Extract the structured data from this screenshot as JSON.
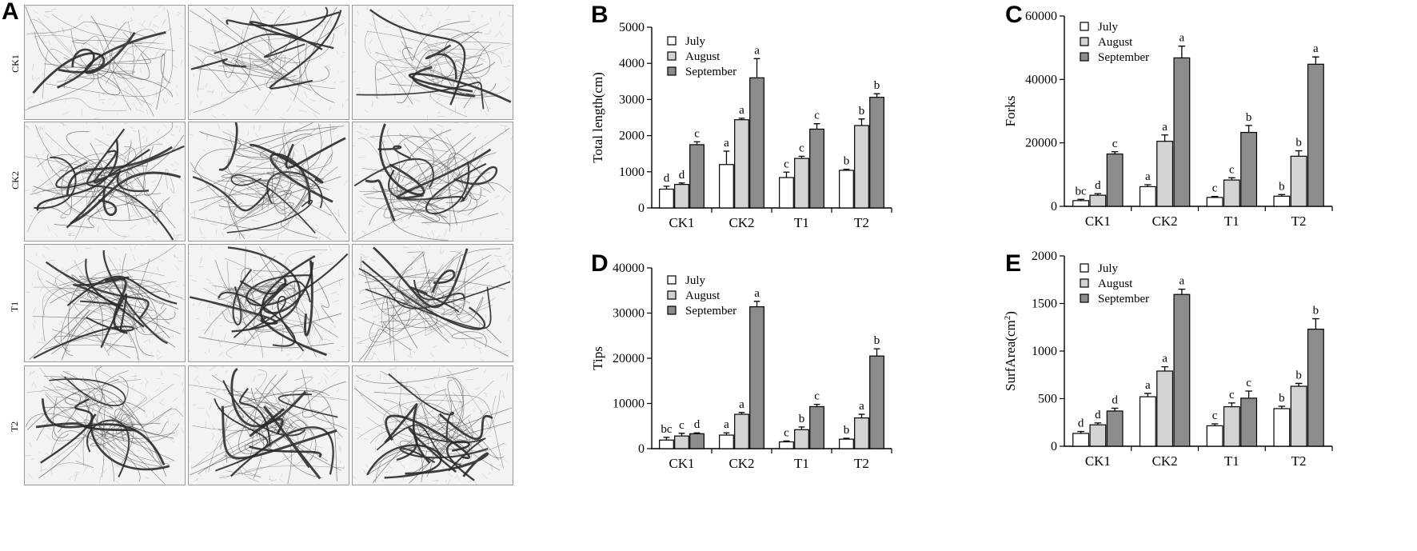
{
  "panel_a": {
    "letter": "A",
    "rows": [
      "CK1",
      "CK2",
      "T1",
      "T2"
    ]
  },
  "legend_labels": [
    "July",
    "August",
    "September"
  ],
  "colors": {
    "july": "#ffffff",
    "august": "#d3d3d3",
    "september": "#8c8c8c"
  },
  "chart_data": [
    {
      "panel": "B",
      "type": "bar",
      "ylabel": "Total length(cm)",
      "ylim": [
        0,
        5000
      ],
      "yticks": [
        0,
        1000,
        2000,
        3000,
        4000,
        5000
      ],
      "categories": [
        "CK1",
        "CK2",
        "T1",
        "T2"
      ],
      "legend": "top-left",
      "series": [
        {
          "name": "July",
          "values": [
            520,
            1200,
            840,
            1040
          ],
          "errors": [
            80,
            370,
            150,
            30
          ],
          "labels": [
            "d",
            "a",
            "c",
            "b"
          ]
        },
        {
          "name": "August",
          "values": [
            650,
            2440,
            1370,
            2280
          ],
          "errors": [
            40,
            40,
            60,
            180
          ],
          "labels": [
            "d",
            "a",
            "c",
            "b"
          ]
        },
        {
          "name": "September",
          "values": [
            1750,
            3600,
            2180,
            3060
          ],
          "errors": [
            80,
            530,
            150,
            100
          ],
          "labels": [
            "c",
            "a",
            "c",
            "b"
          ]
        }
      ]
    },
    {
      "panel": "C",
      "type": "bar",
      "ylabel": "Forks",
      "ylim": [
        0,
        60000
      ],
      "yticks": [
        0,
        20000,
        40000,
        60000
      ],
      "categories": [
        "CK1",
        "CK2",
        "T1",
        "T2"
      ],
      "legend": "top-left",
      "series": [
        {
          "name": "July",
          "values": [
            1800,
            6200,
            2800,
            3200
          ],
          "errors": [
            400,
            600,
            300,
            500
          ],
          "labels": [
            "bc",
            "a",
            "c",
            "b"
          ]
        },
        {
          "name": "August",
          "values": [
            3500,
            20500,
            8300,
            15800
          ],
          "errors": [
            500,
            2000,
            700,
            1700
          ],
          "labels": [
            "d",
            "a",
            "c",
            "b"
          ]
        },
        {
          "name": "September",
          "values": [
            16500,
            46800,
            23300,
            44800
          ],
          "errors": [
            700,
            3700,
            2200,
            2300
          ],
          "labels": [
            "c",
            "a",
            "b",
            "a"
          ]
        }
      ]
    },
    {
      "panel": "D",
      "type": "bar",
      "ylabel": "Tips",
      "ylim": [
        0,
        40000
      ],
      "yticks": [
        0,
        10000,
        20000,
        30000,
        40000
      ],
      "categories": [
        "CK1",
        "CK2",
        "T1",
        "T2"
      ],
      "legend": "top-left",
      "series": [
        {
          "name": "July",
          "values": [
            1900,
            3000,
            1500,
            2100
          ],
          "errors": [
            600,
            500,
            200,
            200
          ],
          "labels": [
            "bc",
            "a",
            "c",
            "b"
          ]
        },
        {
          "name": "August",
          "values": [
            2800,
            7600,
            4200,
            6800
          ],
          "errors": [
            600,
            400,
            600,
            800
          ],
          "labels": [
            "c",
            "a",
            "b",
            "a"
          ]
        },
        {
          "name": "September",
          "values": [
            3300,
            31400,
            9300,
            20500
          ],
          "errors": [
            200,
            1200,
            500,
            1600
          ],
          "labels": [
            "d",
            "a",
            "c",
            "b"
          ]
        }
      ]
    },
    {
      "panel": "E",
      "type": "bar",
      "ylabel": "SurfArea(cm",
      "ylabel_sup": "2",
      "ylabel_end": ")",
      "ylim": [
        0,
        2000
      ],
      "yticks": [
        0,
        500,
        1000,
        1500,
        2000
      ],
      "categories": [
        "CK1",
        "CK2",
        "T1",
        "T2"
      ],
      "legend": "top-left",
      "series": [
        {
          "name": "July",
          "values": [
            135,
            520,
            215,
            395
          ],
          "errors": [
            20,
            35,
            20,
            25
          ],
          "labels": [
            "d",
            "a",
            "c",
            "b"
          ]
        },
        {
          "name": "August",
          "values": [
            225,
            790,
            415,
            630
          ],
          "errors": [
            20,
            45,
            40,
            30
          ],
          "labels": [
            "d",
            "a",
            "c",
            "b"
          ]
        },
        {
          "name": "September",
          "values": [
            370,
            1595,
            505,
            1230
          ],
          "errors": [
            30,
            55,
            75,
            110
          ],
          "labels": [
            "d",
            "a",
            "c",
            "b"
          ]
        }
      ]
    }
  ]
}
